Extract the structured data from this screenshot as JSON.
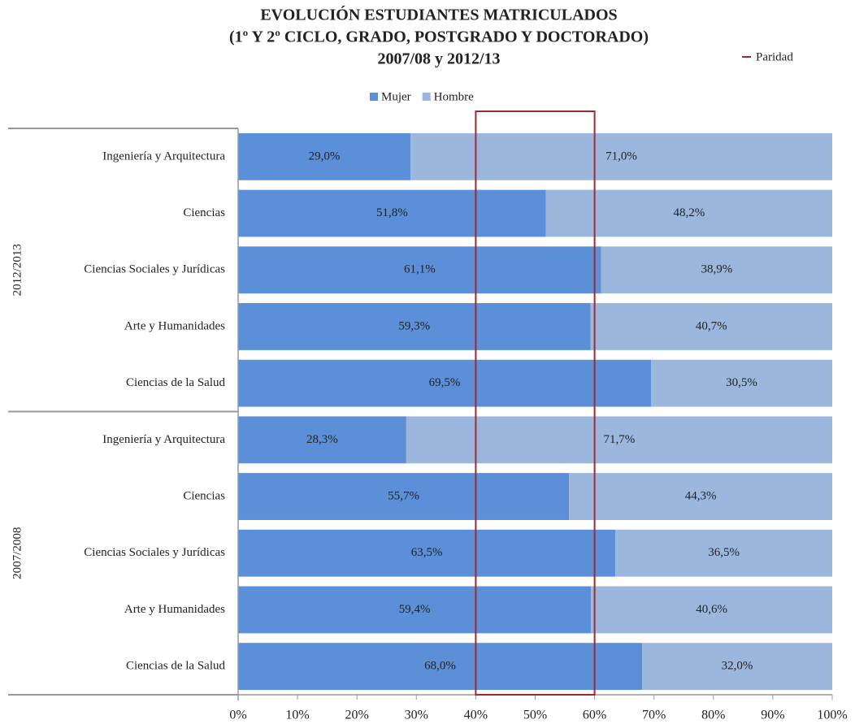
{
  "chart_data": {
    "type": "stacked_barh",
    "title": [
      "EVOLUCIÓN ESTUDIANTES MATRICULADOS",
      "(1º Y 2º CICLO, GRADO, POSTGRADO Y DOCTORADO)",
      "2007/08 y 2012/13"
    ],
    "groups": [
      {
        "label": "2012/2013",
        "categories": [
          "Ingeniería y Arquitectura",
          "Ciencias",
          "Ciencias Sociales y Jurídicas",
          "Arte y Humanidades",
          "Ciencias de la Salud"
        ]
      },
      {
        "label": "2007/2008",
        "categories": [
          "Ingeniería y Arquitectura",
          "Ciencias",
          "Ciencias Sociales y Jurídicas",
          "Arte y Humanidades",
          "Ciencias de la Salud"
        ]
      }
    ],
    "series": [
      {
        "name": "Mujer",
        "color": "#5b8fd8",
        "values": [
          29.0,
          51.8,
          61.1,
          59.3,
          69.5,
          28.3,
          55.7,
          63.5,
          59.4,
          68.0
        ],
        "value_labels": [
          "29,0%",
          "51,8%",
          "61,1%",
          "59,3%",
          "69,5%",
          "28,3%",
          "55,7%",
          "63,5%",
          "59,4%",
          "68,0%"
        ]
      },
      {
        "name": "Hombre",
        "color": "#9bb7de",
        "values": [
          71.0,
          48.2,
          38.9,
          40.7,
          30.5,
          71.7,
          44.3,
          36.5,
          40.6,
          32.0
        ],
        "value_labels": [
          "71,0%",
          "48,2%",
          "38,9%",
          "40,7%",
          "30,5%",
          "71,7%",
          "44,3%",
          "36,5%",
          "40,6%",
          "32,0%"
        ]
      }
    ],
    "parity": {
      "name": "Paridad",
      "range": [
        40,
        60
      ],
      "color": "#a3282e"
    },
    "xlim": [
      0,
      100
    ],
    "xticks": [
      {
        "value": 0,
        "label": "0%"
      },
      {
        "value": 10,
        "label": "10%"
      },
      {
        "value": 20,
        "label": "20%"
      },
      {
        "value": 30,
        "label": "30%"
      },
      {
        "value": 40,
        "label": "40%"
      },
      {
        "value": 50,
        "label": "50%"
      },
      {
        "value": 60,
        "label": "60%"
      },
      {
        "value": 70,
        "label": "70%"
      },
      {
        "value": 80,
        "label": "80%"
      },
      {
        "value": 90,
        "label": "90%"
      },
      {
        "value": 100,
        "label": "100%"
      }
    ],
    "legend": "top"
  }
}
